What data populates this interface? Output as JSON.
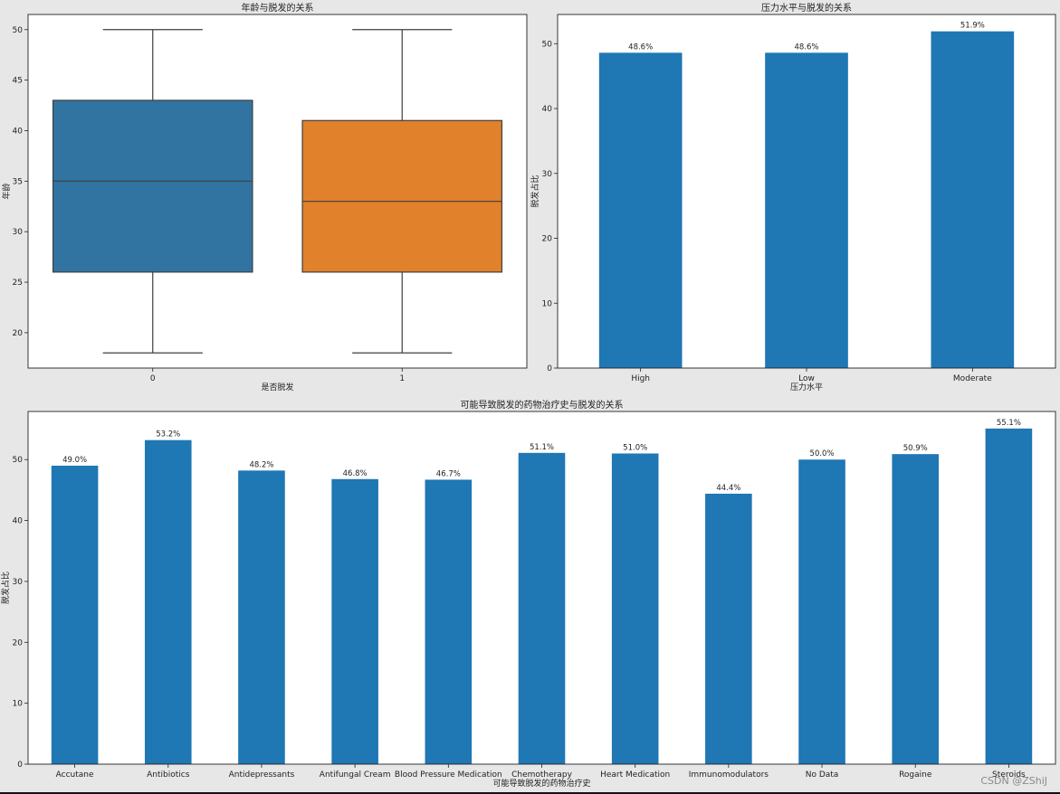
{
  "watermark": "CSDN @ZShiJ",
  "chart_data": [
    {
      "type": "box",
      "title": "年龄与脱发的关系",
      "xlabel": "是否脱发",
      "ylabel": "年龄",
      "categories": [
        "0",
        "1"
      ],
      "colors": [
        "#3274a1",
        "#e1812c"
      ],
      "ylim": [
        16.5,
        51.5
      ],
      "yticks": [
        20,
        25,
        30,
        35,
        40,
        45,
        50
      ],
      "boxes": [
        {
          "category": "0",
          "whisker_low": 18,
          "q1": 26,
          "median": 35,
          "q3": 43,
          "whisker_high": 50
        },
        {
          "category": "1",
          "whisker_low": 18,
          "q1": 26,
          "median": 33,
          "q3": 41,
          "whisker_high": 50
        }
      ]
    },
    {
      "type": "bar",
      "title": "压力水平与脱发的关系",
      "xlabel": "压力水平",
      "ylabel": "脱发占比",
      "categories": [
        "High",
        "Low",
        "Moderate"
      ],
      "values": [
        48.6,
        48.6,
        51.9
      ],
      "value_labels": [
        "48.6%",
        "48.6%",
        "51.9%"
      ],
      "color": "#1f77b4",
      "ylim": [
        0,
        54.5
      ],
      "yticks": [
        0,
        10,
        20,
        30,
        40,
        50
      ]
    },
    {
      "type": "bar",
      "title": "可能导致脱发的药物治疗史与脱发的关系",
      "xlabel": "可能导致脱发的药物治疗史",
      "ylabel": "脱发占比",
      "categories": [
        "Accutane",
        "Antibiotics",
        "Antidepressants",
        "Antifungal Cream",
        "Blood Pressure Medication",
        "Chemotherapy",
        "Heart Medication",
        "Immunomodulators",
        "No Data",
        "Rogaine",
        "Steroids"
      ],
      "values": [
        49.0,
        53.2,
        48.2,
        46.8,
        46.7,
        51.1,
        51.0,
        44.4,
        50.0,
        50.9,
        55.1
      ],
      "value_labels": [
        "49.0%",
        "53.2%",
        "48.2%",
        "46.8%",
        "46.7%",
        "51.1%",
        "51.0%",
        "44.4%",
        "50.0%",
        "50.9%",
        "55.1%"
      ],
      "color": "#1f77b4",
      "ylim": [
        0,
        57.9
      ],
      "yticks": [
        0,
        10,
        20,
        30,
        40,
        50
      ]
    }
  ]
}
